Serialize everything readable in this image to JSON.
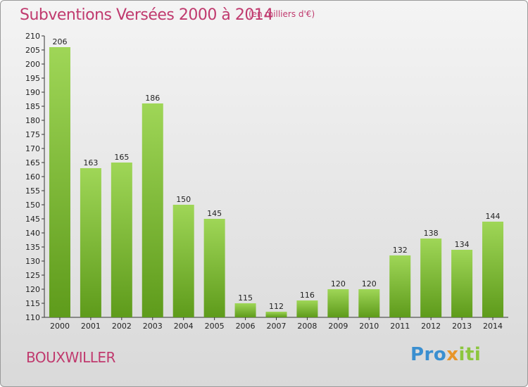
{
  "header": {
    "title": "Subventions Versées 2000 à 2014",
    "unit": "(en milliers d'€)"
  },
  "footer": {
    "town": "BOUXWILLER",
    "logo": "Proxiti"
  },
  "colors": {
    "title": "#c03a6e",
    "bar_top": "#9fd657",
    "bar_bottom": "#5e9b1b",
    "logo_blue": "#3a8fd0",
    "logo_orange": "#e8962a",
    "logo_green": "#8cc63e"
  },
  "chart_data": {
    "type": "bar",
    "title": "Subventions Versées 2000 à 2014",
    "subtitle": "(en milliers d'€)",
    "xlabel": "",
    "ylabel": "",
    "categories": [
      "2000",
      "2001",
      "2002",
      "2003",
      "2004",
      "2005",
      "2006",
      "2007",
      "2008",
      "2009",
      "2010",
      "2011",
      "2012",
      "2013",
      "2014"
    ],
    "values": [
      206,
      163,
      165,
      186,
      150,
      145,
      115,
      112,
      116,
      120,
      120,
      132,
      138,
      134,
      144
    ],
    "ylim": [
      110,
      210
    ],
    "yticks": [
      110,
      115,
      120,
      125,
      130,
      135,
      140,
      145,
      150,
      155,
      160,
      165,
      170,
      175,
      180,
      185,
      190,
      195,
      200,
      205,
      210
    ],
    "grid": false,
    "legend": "none"
  }
}
